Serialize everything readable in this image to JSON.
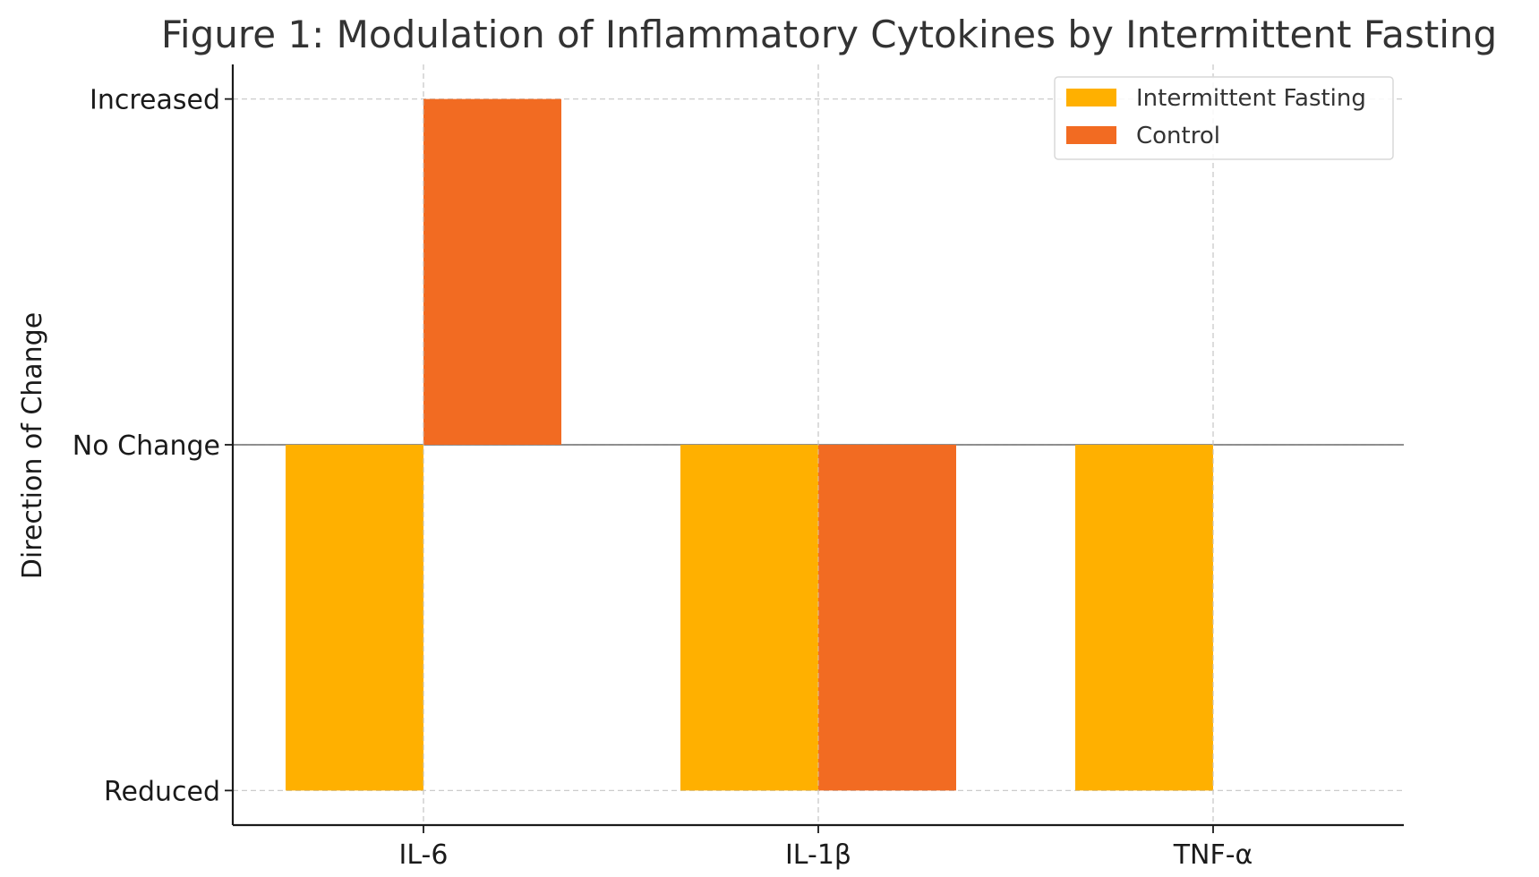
{
  "chart_data": {
    "type": "bar",
    "title": "Figure 1: Modulation of Inflammatory Cytokines by Intermittent Fasting",
    "xlabel": "",
    "ylabel": "Direction of Change",
    "categories": [
      "IL-6",
      "IL-1β",
      "TNF-α"
    ],
    "y_tick_values": [
      -1,
      0,
      1
    ],
    "y_tick_labels": [
      "Reduced",
      "No Change",
      "Increased"
    ],
    "ylim": [
      -1.1,
      1.1
    ],
    "grid": true,
    "legend_position": "top-right",
    "series": [
      {
        "name": "Intermittent Fasting",
        "color": "#FFB000",
        "values": [
          -1,
          -1,
          -1
        ]
      },
      {
        "name": "Control",
        "color": "#F26B22",
        "values": [
          1,
          -1,
          0
        ]
      }
    ]
  }
}
